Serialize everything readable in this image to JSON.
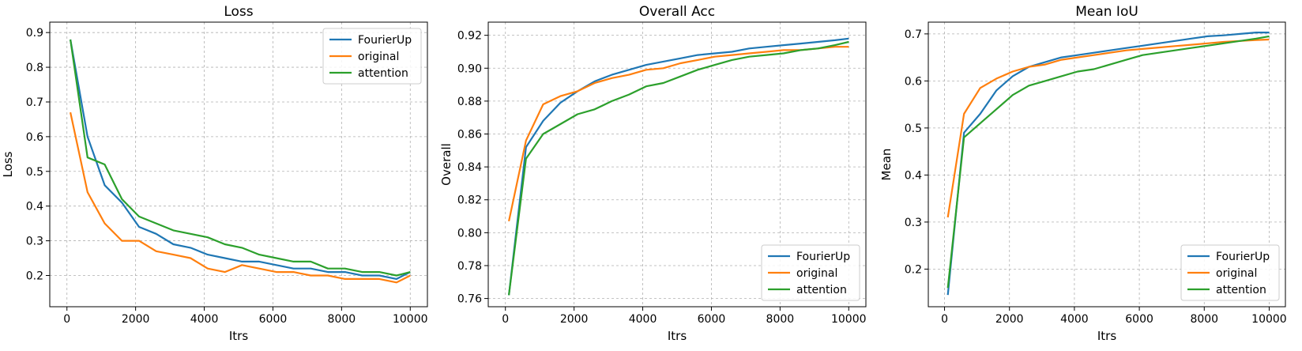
{
  "figure": {
    "colors": {
      "FourierUp": "#1f77b4",
      "original": "#ff7f0e",
      "attention": "#2ca02c"
    }
  },
  "chart_data": [
    {
      "type": "line",
      "title": "Loss",
      "xlabel": "Itrs",
      "ylabel": "Loss",
      "xlim": [
        -500,
        10500
      ],
      "ylim": [
        0.11,
        0.93
      ],
      "xticks": [
        0,
        2000,
        4000,
        6000,
        8000,
        10000
      ],
      "yticks": [
        0.2,
        0.3,
        0.4,
        0.5,
        0.6,
        0.7,
        0.8,
        0.9
      ],
      "grid": true,
      "legend": "top-right",
      "x": [
        100,
        600,
        1100,
        1600,
        2100,
        2600,
        3100,
        3600,
        4100,
        4600,
        5100,
        5600,
        6100,
        6600,
        7100,
        7600,
        8100,
        8600,
        9100,
        9600,
        10000
      ],
      "series": [
        {
          "name": "FourierUp",
          "values": [
            0.88,
            0.6,
            0.46,
            0.41,
            0.34,
            0.32,
            0.29,
            0.28,
            0.26,
            0.25,
            0.24,
            0.24,
            0.23,
            0.22,
            0.22,
            0.21,
            0.21,
            0.2,
            0.2,
            0.19,
            0.21
          ]
        },
        {
          "name": "original",
          "values": [
            0.67,
            0.44,
            0.35,
            0.3,
            0.3,
            0.27,
            0.26,
            0.25,
            0.22,
            0.21,
            0.23,
            0.22,
            0.21,
            0.21,
            0.2,
            0.2,
            0.19,
            0.19,
            0.19,
            0.18,
            0.2
          ]
        },
        {
          "name": "attention",
          "values": [
            0.88,
            0.54,
            0.52,
            0.42,
            0.37,
            0.35,
            0.33,
            0.32,
            0.31,
            0.29,
            0.28,
            0.26,
            0.25,
            0.24,
            0.24,
            0.22,
            0.22,
            0.21,
            0.21,
            0.2,
            0.21
          ]
        }
      ]
    },
    {
      "type": "line",
      "title": "Overall Acc",
      "xlabel": "Itrs",
      "ylabel": "Overall",
      "xlim": [
        -500,
        10500
      ],
      "ylim": [
        0.755,
        0.928
      ],
      "xticks": [
        0,
        2000,
        4000,
        6000,
        8000,
        10000
      ],
      "yticks": [
        0.76,
        0.78,
        0.8,
        0.82,
        0.84,
        0.86,
        0.88,
        0.9,
        0.92
      ],
      "grid": true,
      "legend": "bottom-right",
      "x": [
        100,
        600,
        1100,
        1600,
        2100,
        2600,
        3100,
        3600,
        4100,
        4600,
        5100,
        5600,
        6100,
        6600,
        7100,
        7600,
        8100,
        8600,
        9100,
        9600,
        10000
      ],
      "series": [
        {
          "name": "FourierUp",
          "values": [
            0.762,
            0.852,
            0.868,
            0.879,
            0.886,
            0.892,
            0.896,
            0.899,
            0.902,
            0.904,
            0.906,
            0.908,
            0.909,
            0.91,
            0.912,
            0.913,
            0.914,
            0.915,
            0.916,
            0.917,
            0.918
          ]
        },
        {
          "name": "original",
          "values": [
            0.807,
            0.856,
            0.878,
            0.883,
            0.886,
            0.891,
            0.894,
            0.896,
            0.899,
            0.9,
            0.903,
            0.905,
            0.907,
            0.908,
            0.909,
            0.91,
            0.911,
            0.911,
            0.912,
            0.913,
            0.913
          ]
        },
        {
          "name": "attention",
          "values": [
            0.762,
            0.845,
            0.86,
            0.866,
            0.872,
            0.875,
            0.88,
            0.884,
            0.889,
            0.891,
            0.895,
            0.899,
            0.902,
            0.905,
            0.907,
            0.908,
            0.909,
            0.911,
            0.912,
            0.914,
            0.916
          ]
        }
      ]
    },
    {
      "type": "line",
      "title": "Mean IoU",
      "xlabel": "Itrs",
      "ylabel": "Mean",
      "xlim": [
        -500,
        10500
      ],
      "ylim": [
        0.12,
        0.725
      ],
      "xticks": [
        0,
        2000,
        4000,
        6000,
        8000,
        10000
      ],
      "yticks": [
        0.2,
        0.3,
        0.4,
        0.5,
        0.6,
        0.7
      ],
      "grid": true,
      "legend": "bottom-right",
      "x": [
        100,
        600,
        1100,
        1600,
        2100,
        2600,
        3100,
        3600,
        4100,
        4600,
        5100,
        5600,
        6100,
        6600,
        7100,
        7600,
        8100,
        8600,
        9100,
        9600,
        10000
      ],
      "series": [
        {
          "name": "FourierUp",
          "values": [
            0.145,
            0.49,
            0.53,
            0.58,
            0.61,
            0.63,
            0.64,
            0.65,
            0.655,
            0.66,
            0.665,
            0.67,
            0.675,
            0.68,
            0.685,
            0.69,
            0.695,
            0.697,
            0.7,
            0.703,
            0.703
          ]
        },
        {
          "name": "original",
          "values": [
            0.31,
            0.53,
            0.585,
            0.605,
            0.62,
            0.63,
            0.635,
            0.645,
            0.65,
            0.655,
            0.66,
            0.665,
            0.668,
            0.671,
            0.674,
            0.677,
            0.68,
            0.683,
            0.685,
            0.687,
            0.688
          ]
        },
        {
          "name": "attention",
          "values": [
            0.16,
            0.48,
            0.51,
            0.54,
            0.57,
            0.59,
            0.6,
            0.61,
            0.62,
            0.625,
            0.635,
            0.645,
            0.655,
            0.66,
            0.665,
            0.67,
            0.675,
            0.68,
            0.685,
            0.69,
            0.695
          ]
        }
      ]
    }
  ]
}
